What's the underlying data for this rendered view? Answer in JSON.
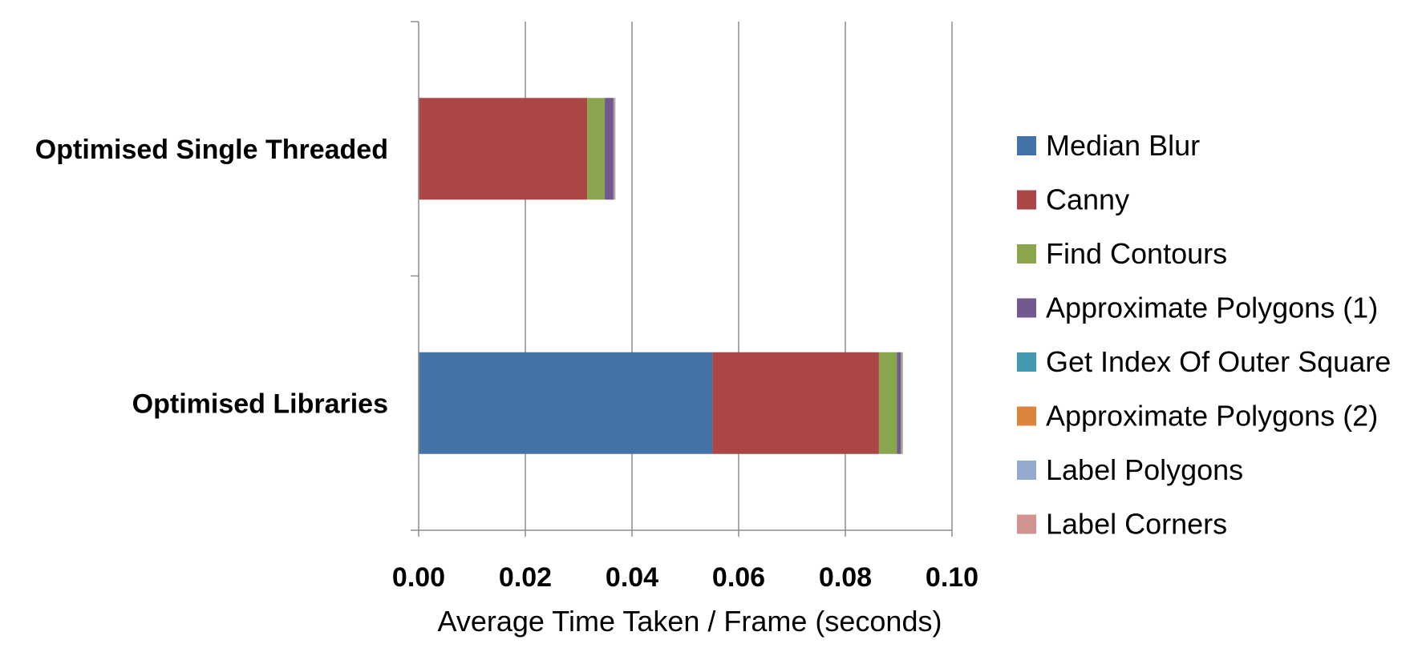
{
  "chart_data": {
    "type": "bar",
    "orientation": "horizontal",
    "stacked": true,
    "categories": [
      "Optimised Single Threaded",
      "Optimised Libraries"
    ],
    "series": [
      {
        "name": "Median Blur",
        "color": "#4572A7",
        "values": [
          0.0,
          0.0551
        ]
      },
      {
        "name": "Canny",
        "color": "#AA4643",
        "values": [
          0.0316,
          0.0312
        ]
      },
      {
        "name": "Find Contours",
        "color": "#89A54E",
        "values": [
          0.0033,
          0.0034
        ]
      },
      {
        "name": "Approximate Polygons (1)",
        "color": "#71588F",
        "values": [
          0.0016,
          0.0007
        ]
      },
      {
        "name": "Get Index Of Outer Square",
        "color": "#4198AF",
        "values": [
          0.0001,
          0.0001
        ]
      },
      {
        "name": "Approximate Polygons (2)",
        "color": "#DB843D",
        "values": [
          0.0001,
          0.0001
        ]
      },
      {
        "name": "Label Polygons",
        "color": "#93A9CF",
        "values": [
          0.0001,
          0.0001
        ]
      },
      {
        "name": "Label Corners",
        "color": "#D19392",
        "values": [
          0.0001,
          0.0001
        ]
      }
    ],
    "xlabel": "Average Time Taken / Frame (seconds)",
    "xlim": [
      0,
      0.1
    ],
    "xticks": [
      "0.00",
      "0.02",
      "0.04",
      "0.06",
      "0.08",
      "0.10"
    ],
    "grid": true,
    "legend_position": "right"
  }
}
